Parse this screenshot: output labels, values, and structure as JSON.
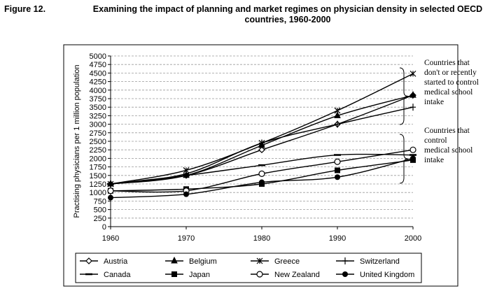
{
  "figure": {
    "label": "Figure 12.",
    "title_line1": "Examining the impact of planning and market regimes on physician density in selected OECD",
    "title_line2": "countries, 1960-2000"
  },
  "chart_data": {
    "type": "line",
    "title": "Examining the impact of planning and market regimes on physician density in selected OECD countries, 1960-2000",
    "xlabel": "",
    "ylabel": "Practising physicians per 1 million population",
    "x": [
      1960,
      1970,
      1980,
      1990,
      2000
    ],
    "xlim": [
      1960,
      2000
    ],
    "ylim": [
      0,
      5000
    ],
    "y_ticks": [
      0,
      250,
      500,
      750,
      1000,
      1250,
      1500,
      1750,
      2000,
      2250,
      2500,
      2750,
      3000,
      3250,
      3500,
      3750,
      4000,
      4250,
      4500,
      4750,
      5000
    ],
    "y_tick_step_labeled": 500,
    "grid": "horizontal dashed at major ticks",
    "legend_position": "bottom",
    "series": [
      {
        "name": "Austria",
        "marker": "diamond-open",
        "values": [
          1250,
          1500,
          2250,
          3000,
          3850
        ]
      },
      {
        "name": "Belgium",
        "marker": "triangle-filled",
        "values": [
          1250,
          1500,
          2380,
          3250,
          3850
        ]
      },
      {
        "name": "Greece",
        "marker": "asterisk",
        "values": [
          1250,
          1650,
          2450,
          3400,
          4480
        ]
      },
      {
        "name": "Switzerland",
        "marker": "plus",
        "values": [
          1250,
          1550,
          2450,
          3000,
          3500
        ]
      },
      {
        "name": "Canada",
        "marker": "dash",
        "values": [
          1250,
          1500,
          1800,
          2100,
          2100
        ]
      },
      {
        "name": "Japan",
        "marker": "square-filled",
        "values": [
          1050,
          1100,
          1250,
          1650,
          1950
        ]
      },
      {
        "name": "New Zealand",
        "marker": "circle-open",
        "values": [
          1050,
          1050,
          1550,
          1900,
          2250
        ]
      },
      {
        "name": "United Kingdom",
        "marker": "circle-filled",
        "values": [
          850,
          950,
          1300,
          1450,
          2000
        ]
      }
    ],
    "annotations": [
      {
        "lines": [
          "Countries that",
          "don't or recently",
          "started to control",
          "medical school",
          "intake"
        ]
      },
      {
        "lines": [
          "Countries that",
          "control",
          "medical school",
          "intake"
        ]
      }
    ]
  }
}
